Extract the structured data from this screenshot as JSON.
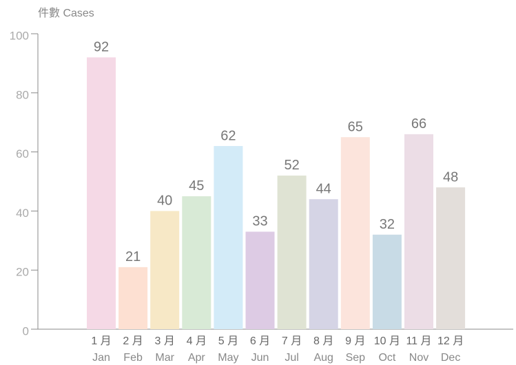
{
  "chart_data": {
    "type": "bar",
    "y_label": "件數 Cases",
    "categories": [
      [
        "1 月",
        "Jan"
      ],
      [
        "2 月",
        "Feb"
      ],
      [
        "3 月",
        "Mar"
      ],
      [
        "4 月",
        "Apr"
      ],
      [
        "5 月",
        "May"
      ],
      [
        "6 月",
        "Jun"
      ],
      [
        "7 月",
        "Jul"
      ],
      [
        "8 月",
        "Aug"
      ],
      [
        "9 月",
        "Sep"
      ],
      [
        "10 月",
        "Oct"
      ],
      [
        "11 月",
        "Nov"
      ],
      [
        "12 月",
        "Dec"
      ]
    ],
    "values": [
      92,
      21,
      40,
      45,
      62,
      33,
      52,
      44,
      65,
      32,
      66,
      48
    ],
    "colors": [
      "#f5d9e6",
      "#fde0d2",
      "#f7e8c6",
      "#d8ead6",
      "#d3ebf8",
      "#ddcbe4",
      "#dfe3d3",
      "#d5d4e5",
      "#fce4dc",
      "#c8dbe6",
      "#ecdde6",
      "#e3deda"
    ],
    "ylim": [
      0,
      100
    ],
    "yticks": [
      0,
      20,
      40,
      60,
      80,
      100
    ]
  }
}
